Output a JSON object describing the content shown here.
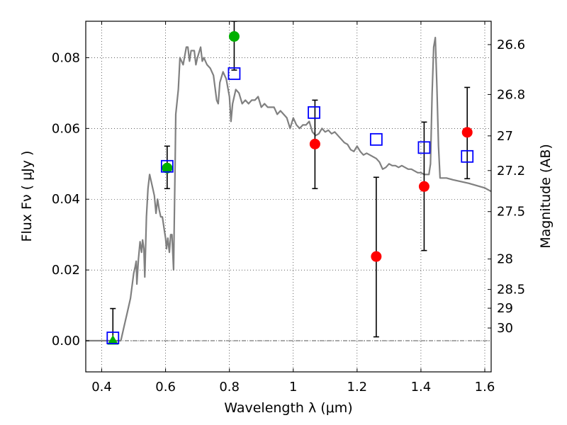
{
  "chart_data": {
    "type": "scatter",
    "xlabel": "Wavelength  λ (μm)",
    "ylabel": "Flux  Fν  ( μJy )",
    "y2label": "Magnitude (AB)",
    "xlim": [
      0.35,
      1.62
    ],
    "ylim": [
      -0.0088,
      0.0903
    ],
    "x_ticks": [
      0.4,
      0.6,
      0.8,
      1.0,
      1.2,
      1.4,
      1.6
    ],
    "x_tick_labels": [
      "0.4",
      "0.6",
      "0.8",
      "1",
      "1.2",
      "1.4",
      "1.6"
    ],
    "y_ticks": [
      0.0,
      0.02,
      0.04,
      0.06,
      0.08
    ],
    "y_tick_labels": [
      "0.00",
      "0.02",
      "0.04",
      "0.06",
      "0.08"
    ],
    "y2_ticks": [
      {
        "label": "26.6",
        "flux": 0.0837
      },
      {
        "label": "26.8",
        "flux": 0.0696
      },
      {
        "label": "27",
        "flux": 0.0579
      },
      {
        "label": "27.2",
        "flux": 0.0481
      },
      {
        "label": "27.5",
        "flux": 0.0365
      },
      {
        "label": "28",
        "flux": 0.0231
      },
      {
        "label": "28.5",
        "flux": 0.0145
      },
      {
        "label": "29",
        "flux": 0.0092
      },
      {
        "label": "30",
        "flux": 0.0036
      }
    ],
    "grid": true,
    "colors": {
      "template": "#808080",
      "model_box": "#0000ff",
      "detection": "#ff0000",
      "highlight": "#00b000",
      "errorbar": "#000000"
    },
    "series": [
      {
        "kind": "line",
        "points": [
          [
            0.35,
            0.0
          ],
          [
            0.455,
            0.0
          ],
          [
            0.46,
            0.0
          ],
          [
            0.47,
            0.004
          ],
          [
            0.48,
            0.008
          ],
          [
            0.49,
            0.012
          ],
          [
            0.5,
            0.019
          ],
          [
            0.505,
            0.021
          ],
          [
            0.508,
            0.0225
          ],
          [
            0.51,
            0.016
          ],
          [
            0.515,
            0.023
          ],
          [
            0.52,
            0.028
          ],
          [
            0.525,
            0.025
          ],
          [
            0.528,
            0.0285
          ],
          [
            0.532,
            0.026
          ],
          [
            0.535,
            0.018
          ],
          [
            0.54,
            0.035
          ],
          [
            0.545,
            0.043
          ],
          [
            0.55,
            0.047
          ],
          [
            0.56,
            0.043
          ],
          [
            0.565,
            0.041
          ],
          [
            0.57,
            0.036
          ],
          [
            0.575,
            0.04
          ],
          [
            0.58,
            0.037
          ],
          [
            0.585,
            0.035
          ],
          [
            0.59,
            0.035
          ],
          [
            0.595,
            0.032
          ],
          [
            0.6,
            0.029
          ],
          [
            0.603,
            0.026
          ],
          [
            0.607,
            0.029
          ],
          [
            0.612,
            0.025
          ],
          [
            0.616,
            0.03
          ],
          [
            0.62,
            0.03
          ],
          [
            0.625,
            0.02
          ],
          [
            0.63,
            0.05
          ],
          [
            0.632,
            0.064
          ],
          [
            0.64,
            0.071
          ],
          [
            0.645,
            0.08
          ],
          [
            0.655,
            0.078
          ],
          [
            0.665,
            0.083
          ],
          [
            0.67,
            0.083
          ],
          [
            0.675,
            0.079
          ],
          [
            0.68,
            0.082
          ],
          [
            0.69,
            0.082
          ],
          [
            0.695,
            0.078
          ],
          [
            0.7,
            0.08
          ],
          [
            0.71,
            0.083
          ],
          [
            0.715,
            0.079
          ],
          [
            0.72,
            0.08
          ],
          [
            0.73,
            0.078
          ],
          [
            0.74,
            0.077
          ],
          [
            0.75,
            0.075
          ],
          [
            0.76,
            0.068
          ],
          [
            0.765,
            0.067
          ],
          [
            0.77,
            0.073
          ],
          [
            0.78,
            0.076
          ],
          [
            0.79,
            0.074
          ],
          [
            0.8,
            0.069
          ],
          [
            0.805,
            0.062
          ],
          [
            0.81,
            0.067
          ],
          [
            0.82,
            0.071
          ],
          [
            0.83,
            0.07
          ],
          [
            0.84,
            0.067
          ],
          [
            0.85,
            0.068
          ],
          [
            0.86,
            0.067
          ],
          [
            0.87,
            0.068
          ],
          [
            0.88,
            0.068
          ],
          [
            0.89,
            0.069
          ],
          [
            0.9,
            0.066
          ],
          [
            0.91,
            0.067
          ],
          [
            0.92,
            0.066
          ],
          [
            0.93,
            0.066
          ],
          [
            0.94,
            0.066
          ],
          [
            0.95,
            0.064
          ],
          [
            0.96,
            0.065
          ],
          [
            0.97,
            0.064
          ],
          [
            0.98,
            0.063
          ],
          [
            0.99,
            0.06
          ],
          [
            1.0,
            0.063
          ],
          [
            1.01,
            0.061
          ],
          [
            1.02,
            0.06
          ],
          [
            1.03,
            0.061
          ],
          [
            1.04,
            0.061
          ],
          [
            1.05,
            0.062
          ],
          [
            1.06,
            0.059
          ],
          [
            1.07,
            0.058
          ],
          [
            1.08,
            0.0585
          ],
          [
            1.09,
            0.06
          ],
          [
            1.1,
            0.059
          ],
          [
            1.11,
            0.0595
          ],
          [
            1.12,
            0.0585
          ],
          [
            1.13,
            0.059
          ],
          [
            1.14,
            0.058
          ],
          [
            1.15,
            0.057
          ],
          [
            1.16,
            0.056
          ],
          [
            1.17,
            0.0555
          ],
          [
            1.18,
            0.054
          ],
          [
            1.19,
            0.0535
          ],
          [
            1.2,
            0.055
          ],
          [
            1.21,
            0.0535
          ],
          [
            1.22,
            0.0525
          ],
          [
            1.23,
            0.053
          ],
          [
            1.24,
            0.0525
          ],
          [
            1.25,
            0.052
          ],
          [
            1.26,
            0.0515
          ],
          [
            1.27,
            0.0505
          ],
          [
            1.28,
            0.0485
          ],
          [
            1.29,
            0.049
          ],
          [
            1.3,
            0.05
          ],
          [
            1.31,
            0.0495
          ],
          [
            1.32,
            0.0495
          ],
          [
            1.33,
            0.049
          ],
          [
            1.34,
            0.0495
          ],
          [
            1.35,
            0.049
          ],
          [
            1.36,
            0.0485
          ],
          [
            1.37,
            0.0485
          ],
          [
            1.38,
            0.048
          ],
          [
            1.39,
            0.0475
          ],
          [
            1.4,
            0.0475
          ],
          [
            1.41,
            0.047
          ],
          [
            1.42,
            0.047
          ],
          [
            1.425,
            0.047
          ],
          [
            1.43,
            0.05
          ],
          [
            1.435,
            0.07
          ],
          [
            1.44,
            0.083
          ],
          [
            1.445,
            0.0857
          ],
          [
            1.45,
            0.072
          ],
          [
            1.455,
            0.055
          ],
          [
            1.46,
            0.046
          ],
          [
            1.48,
            0.046
          ],
          [
            1.5,
            0.0455
          ],
          [
            1.55,
            0.0445
          ],
          [
            1.6,
            0.0432
          ],
          [
            1.62,
            0.0422
          ]
        ]
      },
      {
        "kind": "model-boxes",
        "points": [
          [
            0.435,
            0.0008
          ],
          [
            0.605,
            0.0493
          ],
          [
            0.815,
            0.0755
          ],
          [
            1.065,
            0.0645
          ],
          [
            1.26,
            0.0569
          ],
          [
            1.41,
            0.0546
          ],
          [
            1.545,
            0.0521
          ]
        ]
      },
      {
        "kind": "detections",
        "points": [
          {
            "x": 1.068,
            "y": 0.0556,
            "lo": 0.043,
            "hi": 0.068
          },
          {
            "x": 1.26,
            "y": 0.0238,
            "lo": 0.0011,
            "hi": 0.0462
          },
          {
            "x": 1.41,
            "y": 0.0436,
            "lo": 0.0255,
            "hi": 0.0618
          },
          {
            "x": 1.545,
            "y": 0.0589,
            "lo": 0.0458,
            "hi": 0.0716
          }
        ]
      },
      {
        "kind": "highlighted",
        "points": [
          {
            "x": 0.605,
            "y": 0.0488,
            "lo": 0.043,
            "hi": 0.055
          },
          {
            "x": 0.815,
            "y": 0.086,
            "lo": 0.0765,
            "hi": 0.0903
          }
        ]
      },
      {
        "kind": "upper-limit",
        "points": [
          {
            "x": 0.435,
            "y": 0.0,
            "hi": 0.0091
          }
        ]
      }
    ]
  }
}
